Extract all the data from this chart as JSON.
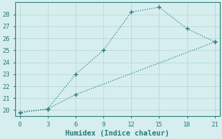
{
  "xlabel": "Humidex (Indice chaleur)",
  "background_color": "#d6eeee",
  "grid_color": "#b8d8d8",
  "line_color": "#2a7a7a",
  "marker_color": "#2a7a7a",
  "series1_x": [
    0,
    3,
    6,
    9,
    12,
    15,
    18,
    21
  ],
  "series1_y": [
    19.8,
    20.1,
    23.0,
    25.0,
    28.2,
    28.6,
    26.8,
    25.7
  ],
  "series2_x": [
    0,
    3,
    6,
    21
  ],
  "series2_y": [
    19.8,
    20.1,
    21.3,
    25.7
  ],
  "xlim": [
    -0.5,
    21.5
  ],
  "ylim": [
    19.5,
    29.0
  ],
  "xticks": [
    0,
    3,
    6,
    9,
    12,
    15,
    18,
    21
  ],
  "yticks": [
    20,
    21,
    22,
    23,
    24,
    25,
    26,
    27,
    28
  ],
  "tick_fontsize": 6.5,
  "label_fontsize": 7.5
}
